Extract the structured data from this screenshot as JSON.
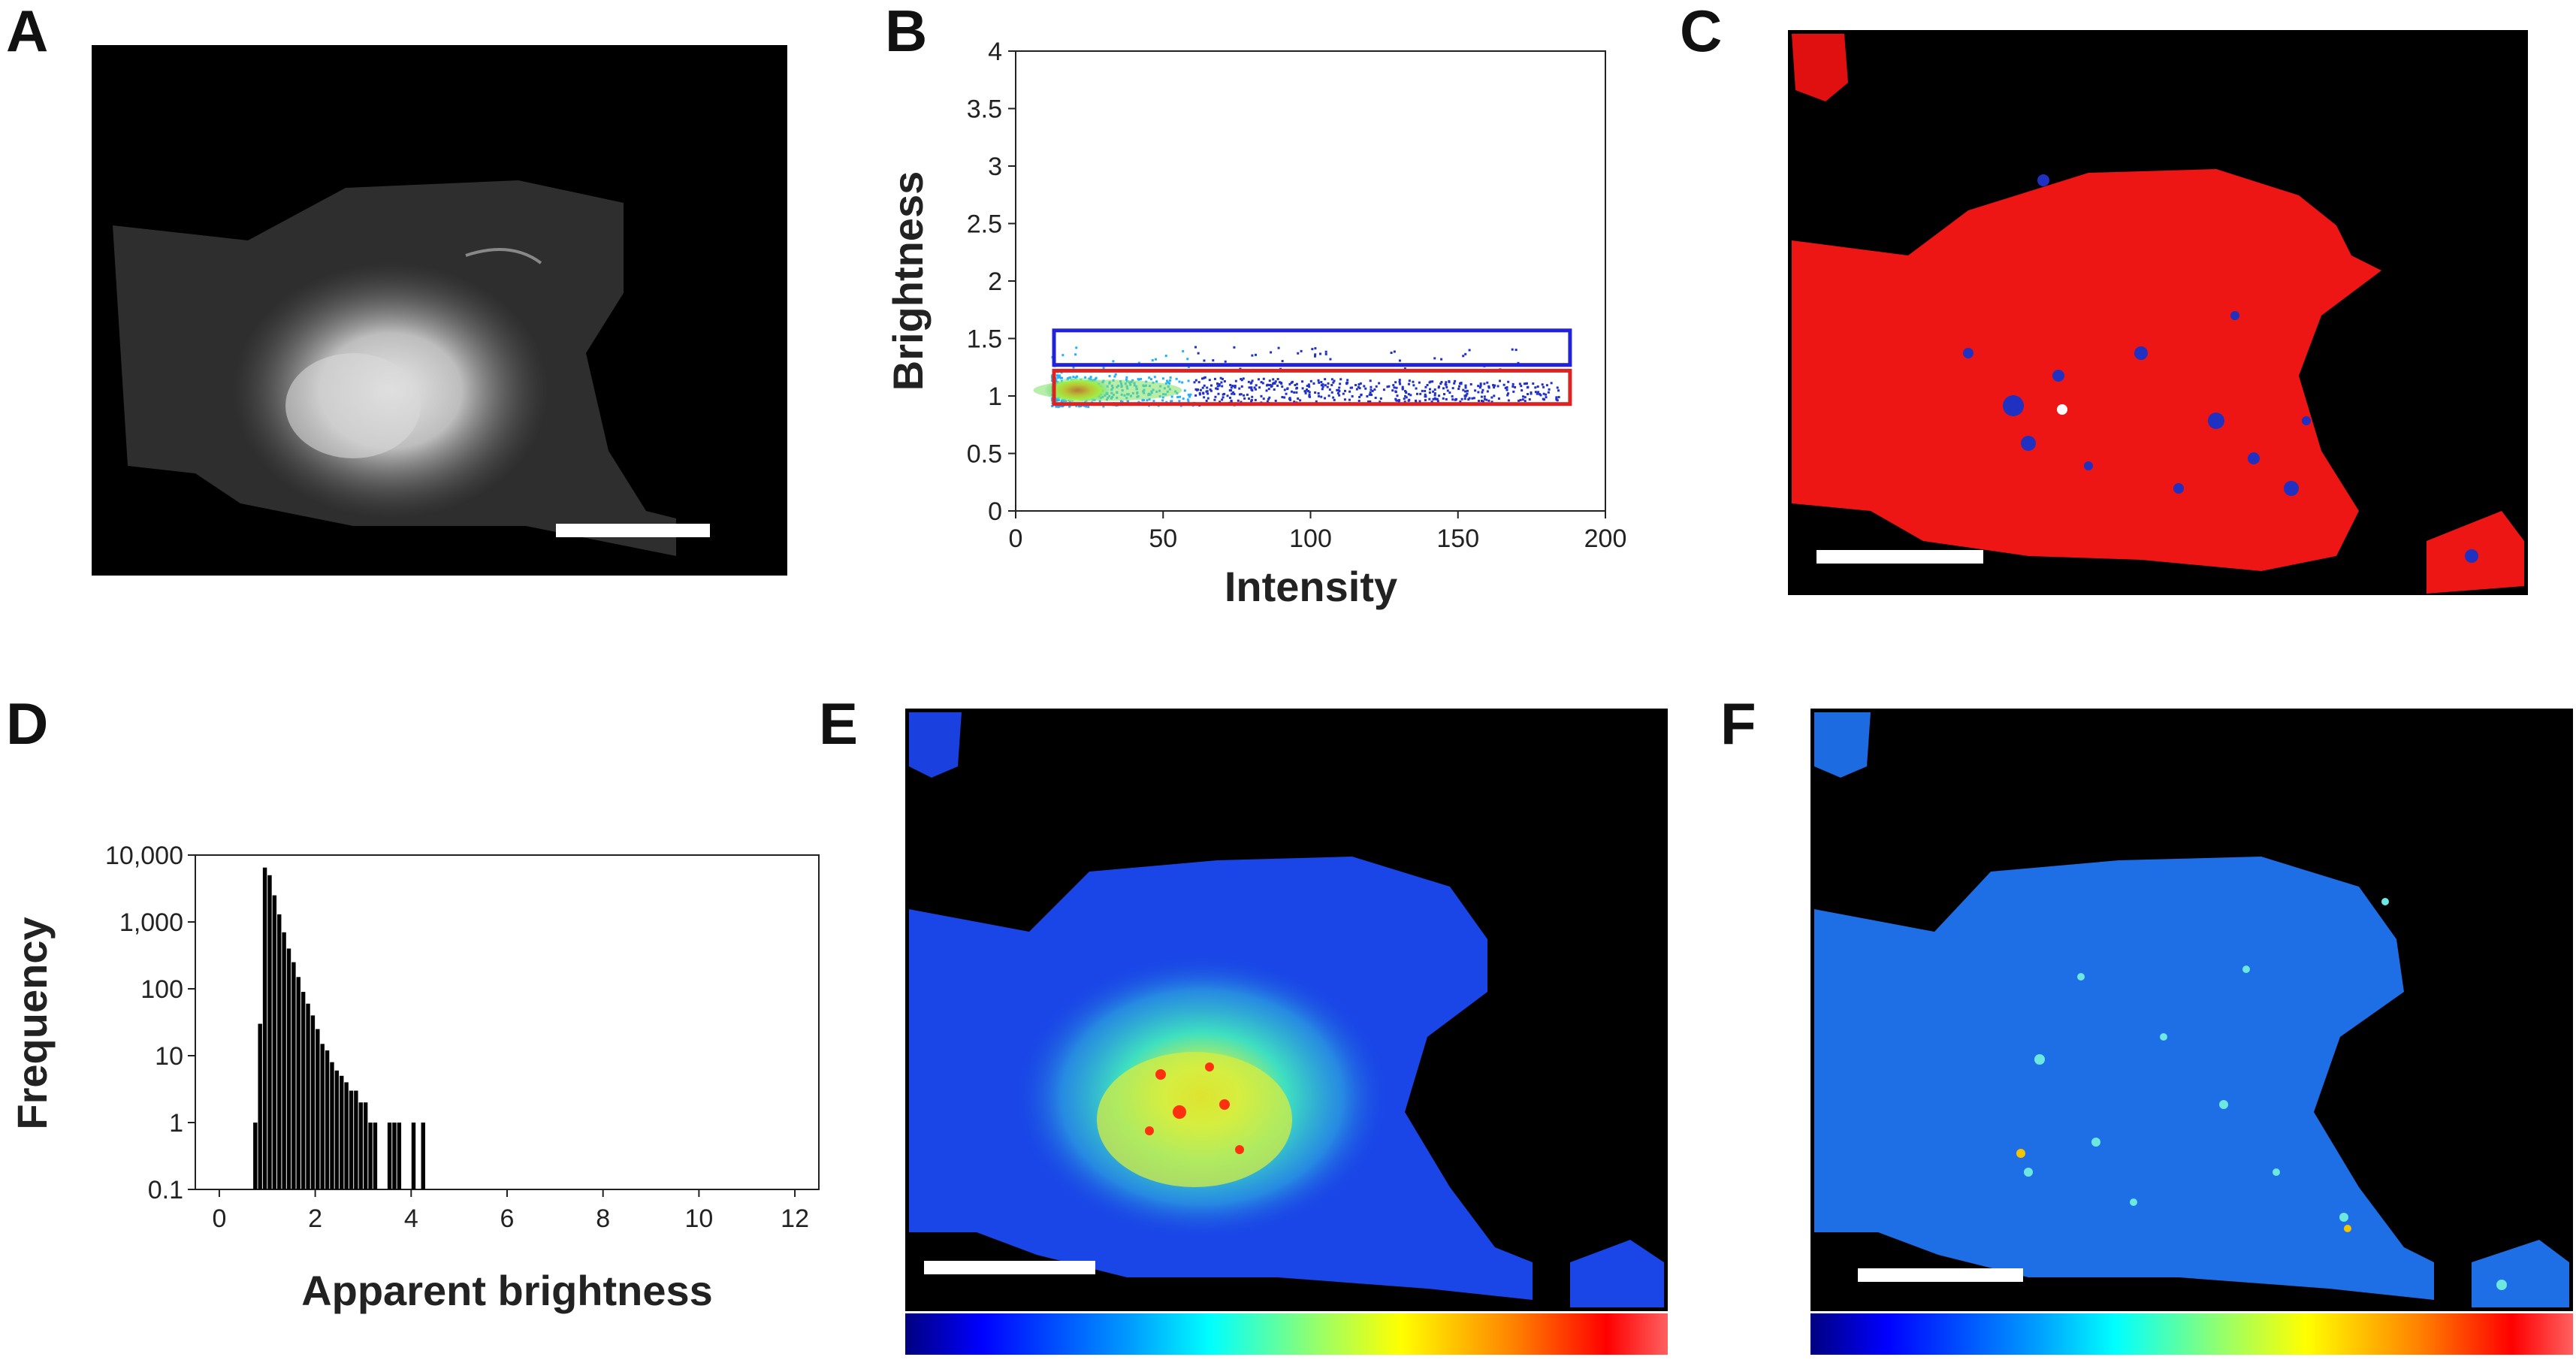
{
  "panel_labels": {
    "A": "A",
    "B": "B",
    "C": "C",
    "D": "D",
    "E": "E",
    "F": "F"
  },
  "chart_data": [
    {
      "panel": "B",
      "type": "scatter",
      "xlabel": "Intensity",
      "ylabel": "Brightness",
      "xlim": [
        0,
        200
      ],
      "ylim": [
        0,
        4
      ],
      "xticks": [
        0,
        50,
        100,
        150,
        200
      ],
      "yticks": [
        0,
        0.5,
        1,
        1.5,
        2,
        2.5,
        3,
        3.5,
        4
      ],
      "xtick_labels": [
        "0",
        "50",
        "100",
        "150",
        "200"
      ],
      "ytick_labels": [
        "0",
        "0.5",
        "1",
        "1.5",
        "2",
        "2.5",
        "3",
        "3.5",
        "4"
      ],
      "point_cloud": {
        "x_range": [
          12,
          185
        ],
        "y_center": 1.05,
        "dense_region_x": [
          12,
          30
        ]
      },
      "selection_boxes": [
        {
          "color": "#2222dd",
          "x_range": [
            13,
            188
          ],
          "y_range": [
            1.27,
            1.57
          ]
        },
        {
          "color": "#dd2222",
          "x_range": [
            13,
            188
          ],
          "y_range": [
            0.93,
            1.22
          ]
        }
      ]
    },
    {
      "panel": "D",
      "type": "bar",
      "xlabel": "Apparent brightness",
      "ylabel": "Frequency",
      "xlim": [
        -0.5,
        12.5
      ],
      "ylim": [
        0.1,
        10000
      ],
      "yscale": "log",
      "xticks": [
        0,
        2,
        4,
        6,
        8,
        10,
        12
      ],
      "xtick_labels": [
        "0",
        "2",
        "4",
        "6",
        "8",
        "10",
        "12"
      ],
      "yticks": [
        0.1,
        1,
        10,
        100,
        1000,
        10000
      ],
      "ytick_labels": [
        "0.1",
        "1",
        "10",
        "100",
        "1,000",
        "10,000"
      ],
      "bins": [
        [
          0.75,
          1
        ],
        [
          0.85,
          30
        ],
        [
          0.95,
          6500
        ],
        [
          1.05,
          5000
        ],
        [
          1.15,
          2500
        ],
        [
          1.25,
          1300
        ],
        [
          1.35,
          700
        ],
        [
          1.45,
          400
        ],
        [
          1.55,
          250
        ],
        [
          1.65,
          150
        ],
        [
          1.75,
          90
        ],
        [
          1.85,
          60
        ],
        [
          1.95,
          40
        ],
        [
          2.05,
          25
        ],
        [
          2.15,
          15
        ],
        [
          2.25,
          12
        ],
        [
          2.35,
          8
        ],
        [
          2.45,
          6
        ],
        [
          2.55,
          5
        ],
        [
          2.65,
          4
        ],
        [
          2.75,
          3
        ],
        [
          2.85,
          3
        ],
        [
          2.95,
          2
        ],
        [
          3.05,
          2
        ],
        [
          3.15,
          1
        ],
        [
          3.25,
          1
        ],
        [
          3.55,
          1
        ],
        [
          3.65,
          1
        ],
        [
          3.75,
          1
        ],
        [
          4.05,
          1
        ],
        [
          4.25,
          1
        ]
      ]
    }
  ]
}
